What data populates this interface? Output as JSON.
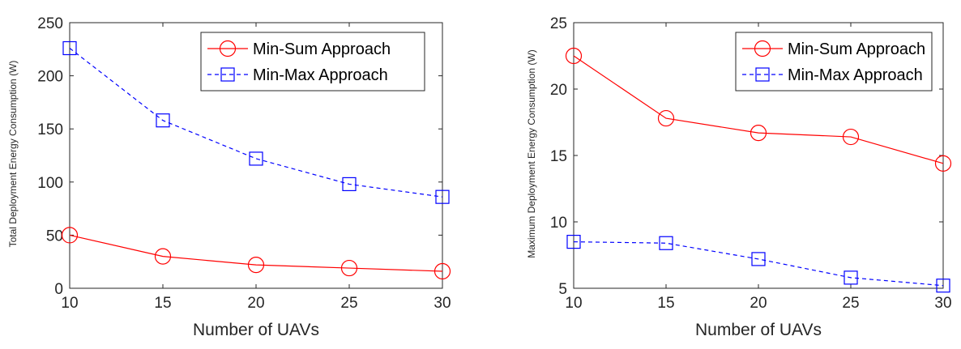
{
  "chart_data": [
    {
      "type": "line",
      "title": "",
      "xlabel": "Number of UAVs",
      "ylabel": "Total Deployment Energy Consumption  (W)",
      "x": [
        10,
        15,
        20,
        25,
        30
      ],
      "xlim": [
        10,
        30
      ],
      "ylim": [
        0,
        250
      ],
      "xticks": [
        10,
        15,
        20,
        25,
        30
      ],
      "yticks": [
        0,
        50,
        100,
        150,
        200,
        250
      ],
      "grid": false,
      "legend": "top-right",
      "series": [
        {
          "name": "Min-Sum Approach",
          "values": [
            50,
            30,
            22,
            19,
            16
          ],
          "color": "#ff0000",
          "marker": "circle",
          "line": "solid"
        },
        {
          "name": "Min-Max Approach",
          "values": [
            226,
            158,
            122,
            98,
            86
          ],
          "color": "#0000ff",
          "marker": "square",
          "line": "dashed"
        }
      ]
    },
    {
      "type": "line",
      "title": "",
      "xlabel": "Number of UAVs",
      "ylabel": "Maximum Deployment Energy Consumption  (W)",
      "x": [
        10,
        15,
        20,
        25,
        30
      ],
      "xlim": [
        10,
        30
      ],
      "ylim": [
        5,
        25
      ],
      "xticks": [
        10,
        15,
        20,
        25,
        30
      ],
      "yticks": [
        5,
        10,
        15,
        20,
        25
      ],
      "grid": false,
      "legend": "top-right",
      "series": [
        {
          "name": "Min-Sum Approach",
          "values": [
            22.5,
            17.8,
            16.7,
            16.4,
            14.4
          ],
          "color": "#ff0000",
          "marker": "circle",
          "line": "solid"
        },
        {
          "name": "Min-Max Approach",
          "values": [
            8.5,
            8.4,
            7.2,
            5.8,
            5.2
          ],
          "color": "#0000ff",
          "marker": "square",
          "line": "dashed"
        }
      ]
    }
  ]
}
